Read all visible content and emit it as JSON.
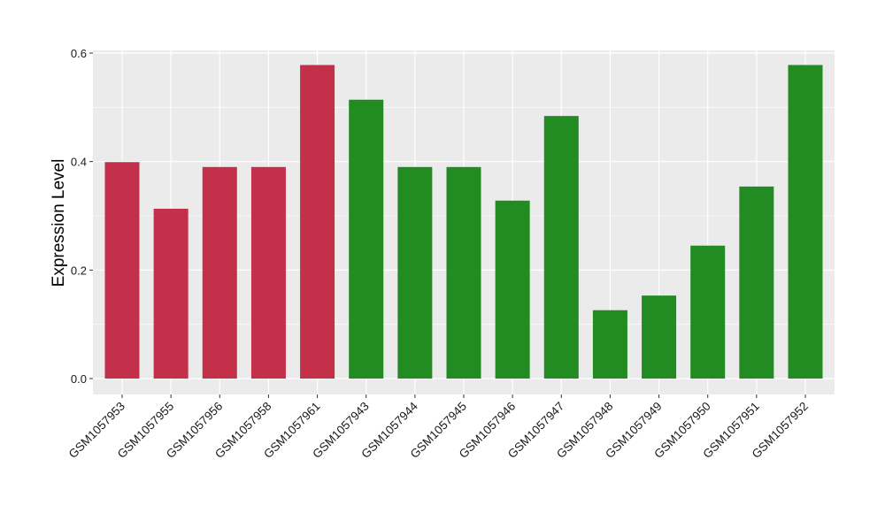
{
  "chart_data": {
    "type": "bar",
    "title": "",
    "xlabel": "",
    "ylabel": "Expression Level",
    "ylim": [
      0,
      0.6
    ],
    "yticks": [
      "0.0",
      "0.2",
      "0.4",
      "0.6"
    ],
    "ytick_values": [
      0,
      0.2,
      0.4,
      0.6
    ],
    "grid": true,
    "categories": [
      "GSM1057953",
      "GSM1057955",
      "GSM1057956",
      "GSM1057958",
      "GSM1057961",
      "GSM1057943",
      "GSM1057944",
      "GSM1057945",
      "GSM1057946",
      "GSM1057947",
      "GSM1057948",
      "GSM1057949",
      "GSM1057950",
      "GSM1057951",
      "GSM1057952"
    ],
    "values": [
      0.399,
      0.313,
      0.39,
      0.39,
      0.578,
      0.514,
      0.39,
      0.39,
      0.328,
      0.484,
      0.126,
      0.153,
      0.245,
      0.354,
      0.578
    ],
    "bar_colors": [
      "#c3304a",
      "#c3304a",
      "#c3304a",
      "#c3304a",
      "#c3304a",
      "#228b22",
      "#228b22",
      "#228b22",
      "#228b22",
      "#228b22",
      "#228b22",
      "#228b22",
      "#228b22",
      "#228b22",
      "#228b22"
    ],
    "panel_background": "#ebebeb",
    "grid_color": "#ffffff"
  }
}
